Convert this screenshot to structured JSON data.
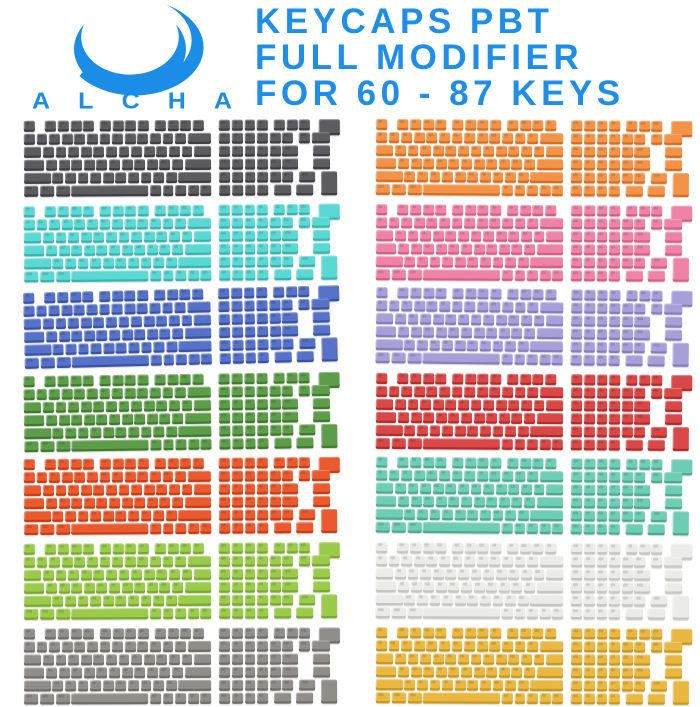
{
  "brand": {
    "name": "ALCHA",
    "logo_color": "#1b8de6"
  },
  "title": {
    "lines": [
      "KEYCAPS PBT",
      "FULL MODIFIER",
      "FOR 60 - 87 KEYS"
    ],
    "color": "#1e8fe8"
  },
  "gallery": {
    "rows": 7,
    "columns": 2,
    "keyboards": [
      {
        "name": "dark-grey",
        "top": "#5c5c5e",
        "side": "#3e3e40"
      },
      {
        "name": "orange",
        "top": "#f29347",
        "side": "#d96e1d"
      },
      {
        "name": "turquoise",
        "top": "#5ad8d4",
        "side": "#35b5b1"
      },
      {
        "name": "pink",
        "top": "#ef83a7",
        "side": "#d75d85"
      },
      {
        "name": "blue",
        "top": "#5571c8",
        "side": "#3a52a5"
      },
      {
        "name": "lavender",
        "top": "#a79fd7",
        "side": "#877cc0"
      },
      {
        "name": "green",
        "top": "#5d9c49",
        "side": "#3f7a2d"
      },
      {
        "name": "red",
        "top": "#d94746",
        "side": "#b52b2a"
      },
      {
        "name": "orange-red",
        "top": "#eb5a2e",
        "side": "#c83d14"
      },
      {
        "name": "mint",
        "top": "#6ecdb5",
        "side": "#4bab92"
      },
      {
        "name": "lime-green",
        "top": "#9acb4b",
        "side": "#7aaa2c"
      },
      {
        "name": "white",
        "top": "#ebebe7",
        "side": "#c6c5bf"
      },
      {
        "name": "grey",
        "top": "#8f8e89",
        "side": "#6f6e69"
      },
      {
        "name": "yellow",
        "top": "#eab840",
        "side": "#cc9818"
      }
    ]
  }
}
